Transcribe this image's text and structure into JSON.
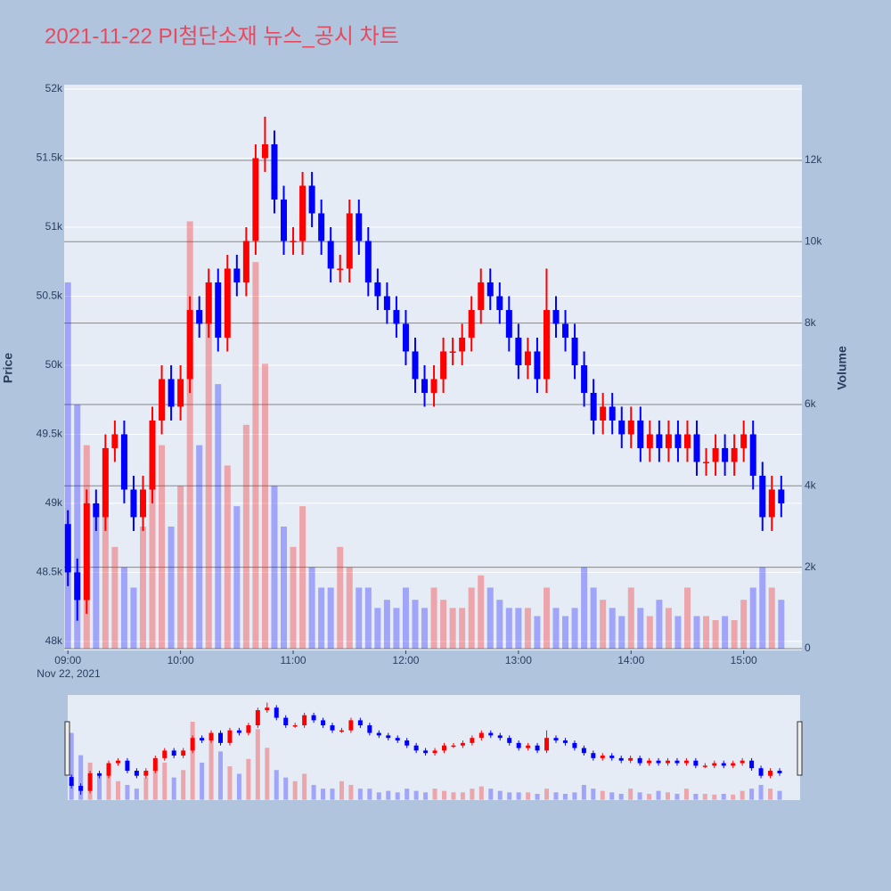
{
  "chart_data": {
    "type": "candlestick",
    "title": "2021-11-22 PI첨단소재 뉴스_공시 차트",
    "date_label": "Nov 22, 2021",
    "y_label": "Price",
    "y2_label": "Volume",
    "increasing_color": "#ff0000",
    "decreasing_color": "#0000ff",
    "x": [
      "09:00",
      "09:05",
      "09:10",
      "09:15",
      "09:20",
      "09:25",
      "09:30",
      "09:35",
      "09:40",
      "09:45",
      "09:50",
      "09:55",
      "10:00",
      "10:05",
      "10:10",
      "10:15",
      "10:20",
      "10:25",
      "10:30",
      "10:35",
      "10:40",
      "10:45",
      "10:50",
      "10:55",
      "11:00",
      "11:05",
      "11:10",
      "11:15",
      "11:20",
      "11:25",
      "11:30",
      "11:35",
      "11:40",
      "11:45",
      "11:50",
      "11:55",
      "12:00",
      "12:05",
      "12:10",
      "12:15",
      "12:20",
      "12:25",
      "12:30",
      "12:35",
      "12:40",
      "12:45",
      "12:50",
      "12:55",
      "13:00",
      "13:05",
      "13:10",
      "13:15",
      "13:20",
      "13:25",
      "13:30",
      "13:35",
      "13:40",
      "13:45",
      "13:50",
      "13:55",
      "14:00",
      "14:05",
      "14:10",
      "14:15",
      "14:20",
      "14:25",
      "14:30",
      "14:35",
      "14:40",
      "14:45",
      "14:50",
      "14:55",
      "15:00",
      "15:05",
      "15:10",
      "15:15",
      "15:20"
    ],
    "open": [
      48850,
      48500,
      48300,
      49000,
      48900,
      49400,
      49500,
      49100,
      48900,
      49100,
      49600,
      49900,
      49700,
      49900,
      50400,
      50300,
      50600,
      50200,
      50700,
      50600,
      50900,
      51500,
      51600,
      51200,
      50900,
      50900,
      51300,
      51100,
      50900,
      50700,
      50700,
      51100,
      50900,
      50600,
      50500,
      50400,
      50300,
      50100,
      49900,
      49800,
      49900,
      50100,
      50100,
      50200,
      50400,
      50600,
      50500,
      50400,
      50200,
      50000,
      50100,
      49900,
      50400,
      50300,
      50200,
      50000,
      49800,
      49600,
      49700,
      49600,
      49500,
      49600,
      49400,
      49500,
      49400,
      49500,
      49400,
      49500,
      49300,
      49300,
      49400,
      49300,
      49400,
      49500,
      49200,
      48900,
      49100
    ],
    "high": [
      48950,
      48600,
      49100,
      49100,
      49500,
      49600,
      49600,
      49200,
      49200,
      49700,
      50000,
      50000,
      50000,
      50500,
      50500,
      50700,
      50700,
      50800,
      50800,
      51000,
      51600,
      51800,
      51700,
      51300,
      51000,
      51400,
      51400,
      51200,
      51000,
      50800,
      51200,
      51200,
      51000,
      50700,
      50600,
      50500,
      50400,
      50200,
      50000,
      50000,
      50200,
      50200,
      50300,
      50500,
      50700,
      50700,
      50600,
      50500,
      50300,
      50200,
      50200,
      50700,
      50500,
      50400,
      50300,
      50100,
      49900,
      49800,
      49800,
      49700,
      49700,
      49700,
      49600,
      49600,
      49600,
      49600,
      49600,
      49600,
      49400,
      49500,
      49500,
      49500,
      49600,
      49600,
      49300,
      49200,
      49200
    ],
    "low": [
      48400,
      48150,
      48200,
      48800,
      48800,
      49300,
      49000,
      48800,
      48800,
      49000,
      49500,
      49600,
      49600,
      49800,
      50200,
      50200,
      50100,
      50100,
      50500,
      50500,
      50800,
      51400,
      51100,
      50800,
      50800,
      50800,
      51000,
      50800,
      50600,
      50600,
      50600,
      50800,
      50500,
      50400,
      50300,
      50200,
      50000,
      49800,
      49700,
      49700,
      49800,
      50000,
      50000,
      50100,
      50300,
      50400,
      50300,
      50100,
      49900,
      49900,
      49800,
      49800,
      50200,
      50100,
      49900,
      49700,
      49500,
      49500,
      49500,
      49400,
      49400,
      49300,
      49300,
      49300,
      49300,
      49300,
      49300,
      49200,
      49200,
      49200,
      49200,
      49200,
      49300,
      49100,
      48800,
      48800,
      48900
    ],
    "close": [
      48500,
      48300,
      49000,
      48900,
      49400,
      49500,
      49100,
      48900,
      49100,
      49600,
      49900,
      49700,
      49900,
      50400,
      50300,
      50600,
      50200,
      50700,
      50600,
      50900,
      51500,
      51600,
      51200,
      50900,
      50900,
      51300,
      51100,
      50900,
      50700,
      50700,
      51100,
      50900,
      50600,
      50500,
      50400,
      50300,
      50100,
      49900,
      49800,
      49900,
      50100,
      50100,
      50200,
      50400,
      50600,
      50500,
      50400,
      50200,
      50000,
      50100,
      49900,
      50400,
      50300,
      50200,
      50000,
      49800,
      49600,
      49700,
      49600,
      49500,
      49600,
      49400,
      49500,
      49400,
      49500,
      49400,
      49500,
      49300,
      49300,
      49400,
      49300,
      49400,
      49500,
      49200,
      48900,
      49100,
      49000
    ],
    "volume": [
      9000,
      6000,
      5000,
      3500,
      4000,
      2500,
      2000,
      1500,
      3000,
      4500,
      5000,
      3000,
      4000,
      10500,
      5000,
      9000,
      6500,
      4500,
      3500,
      5500,
      9500,
      7000,
      4000,
      3000,
      2500,
      3500,
      2000,
      1500,
      1500,
      2500,
      2000,
      1500,
      1500,
      1000,
      1200,
      1000,
      1500,
      1200,
      1000,
      1500,
      1200,
      1000,
      1000,
      1500,
      1800,
      1500,
      1200,
      1000,
      1000,
      1000,
      800,
      1500,
      1000,
      800,
      1000,
      2000,
      1500,
      1200,
      1000,
      800,
      1500,
      1000,
      800,
      1200,
      1000,
      800,
      1500,
      800,
      800,
      700,
      800,
      700,
      1200,
      1500,
      2000,
      1500,
      1200
    ],
    "xlim": [
      "08:58",
      "15:31"
    ],
    "xticks": [
      "09:00",
      "10:00",
      "11:00",
      "12:00",
      "13:00",
      "14:00",
      "15:00"
    ],
    "ylim": [
      47935,
      52032
    ],
    "yticks": [
      {
        "value": 48000,
        "label": "48k"
      },
      {
        "value": 48500,
        "label": "48.5k"
      },
      {
        "value": 49000,
        "label": "49k"
      },
      {
        "value": 49500,
        "label": "49.5k"
      },
      {
        "value": 50000,
        "label": "50k"
      },
      {
        "value": 50500,
        "label": "50.5k"
      },
      {
        "value": 51000,
        "label": "51k"
      },
      {
        "value": 51500,
        "label": "51.5k"
      },
      {
        "value": 52000,
        "label": "52k"
      }
    ],
    "y2lim": [
      -44,
      13860
    ],
    "y2ticks": [
      0,
      {
        "value": 2000,
        "label": "2k"
      },
      {
        "value": 4000,
        "label": "4k"
      },
      {
        "value": 6000,
        "label": "6k"
      },
      {
        "value": 8000,
        "label": "8k"
      },
      {
        "value": 10000,
        "label": "10k"
      },
      {
        "value": 12000,
        "label": "12k"
      }
    ],
    "grid": true,
    "rangeslider": true
  }
}
